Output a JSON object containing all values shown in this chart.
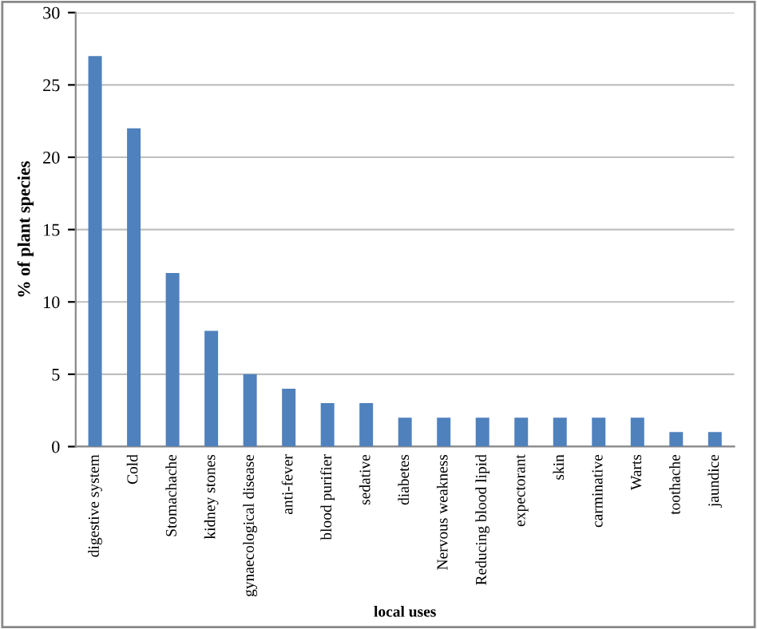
{
  "chart_data": {
    "type": "bar",
    "xlabel": "local uses",
    "ylabel": "% of plant species",
    "categories": [
      "digestive system",
      "Cold",
      "Stomachache",
      "kidney stones",
      "gynaecological disease",
      "anti-fever",
      "blood purifier",
      "sedative",
      "diabetes",
      "Nervous weakness",
      "Reducing blood lipid",
      "expectorant",
      "skin",
      "carminative",
      "Warts",
      "toothache",
      "jaundice"
    ],
    "values": [
      27,
      22,
      12,
      8,
      5,
      4,
      3,
      3,
      2,
      2,
      2,
      2,
      2,
      2,
      2,
      1,
      1
    ],
    "color": "#4f81bd",
    "ylim": [
      0,
      30
    ],
    "yticks": [
      0,
      5,
      10,
      15,
      20,
      25,
      30
    ],
    "grid": "y",
    "legend": false
  }
}
